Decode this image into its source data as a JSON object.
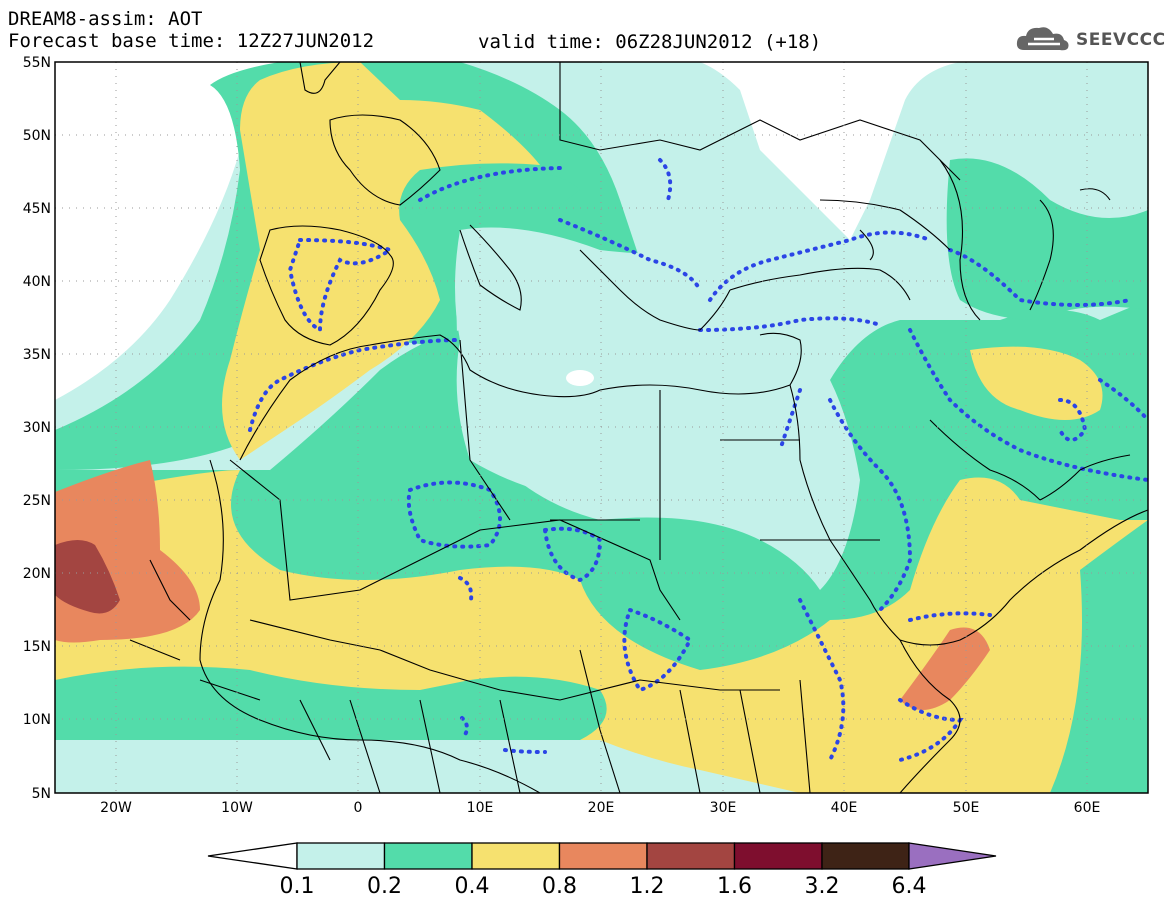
{
  "header": {
    "title": "DREAM8-assim: AOT",
    "base_time": "Forecast base time: 12Z27JUN2012",
    "valid_time": "valid time: 06Z28JUN2012 (+18)",
    "logo_text": "SEEVCCC"
  },
  "map": {
    "extent": {
      "lon": [
        -25,
        65
      ],
      "lat": [
        5,
        55
      ]
    },
    "lat_labels": [
      "55N",
      "50N",
      "45N",
      "40N",
      "35N",
      "30N",
      "25N",
      "20N",
      "15N",
      "10N",
      "5N"
    ],
    "lat_values": [
      55,
      50,
      45,
      40,
      35,
      30,
      25,
      20,
      15,
      10,
      5
    ],
    "lon_labels": [
      "20W",
      "10W",
      "0",
      "10E",
      "20E",
      "30E",
      "40E",
      "50E",
      "60E"
    ],
    "lon_values": [
      -20,
      -10,
      0,
      10,
      20,
      30,
      40,
      50,
      60
    ]
  },
  "colorbar": {
    "labels": [
      "0.1",
      "0.2",
      "0.4",
      "0.8",
      "1.2",
      "1.6",
      "3.2",
      "6.4"
    ],
    "colors": [
      "#ffffff",
      "#c4f1ea",
      "#53dcaa",
      "#f6e16f",
      "#e8875e",
      "#a34541",
      "#7e0e2e",
      "#3e2316",
      "#9a6fc0"
    ]
  }
}
